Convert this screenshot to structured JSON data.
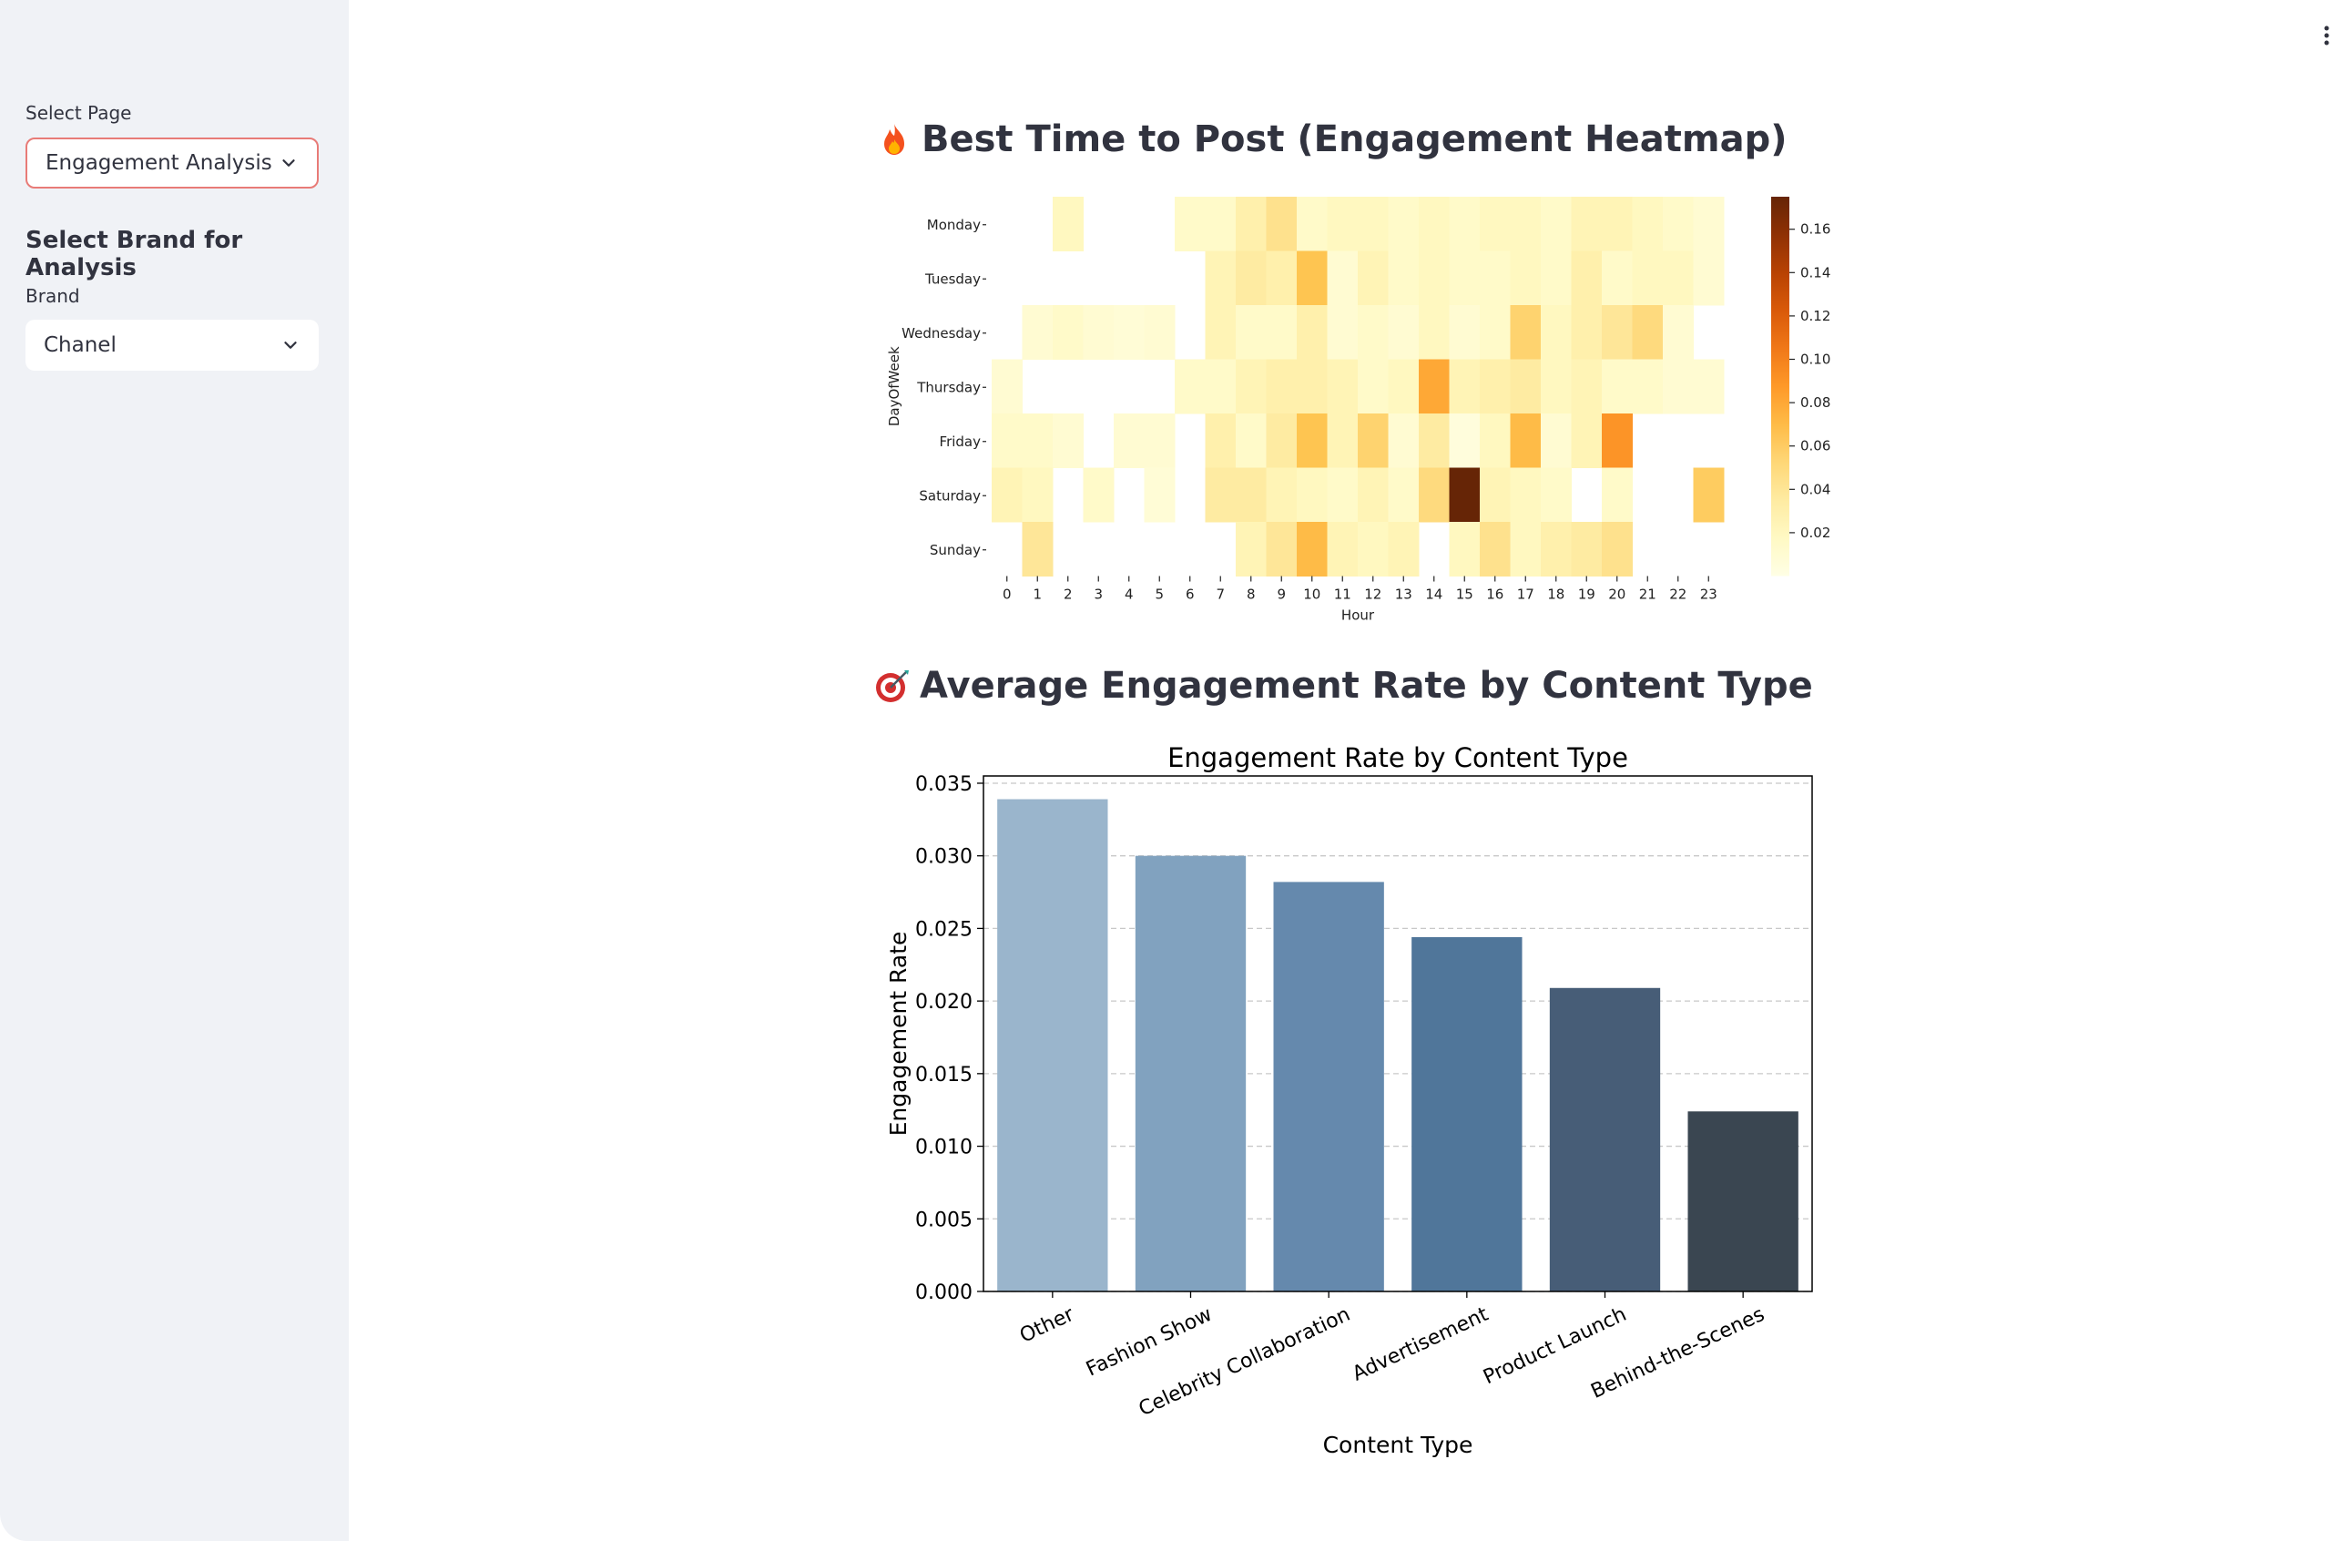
{
  "sidebar": {
    "page_label": "Select Page",
    "page_value": "Engagement Analysis",
    "brand_heading": "Select Brand for Analysis",
    "brand_label": "Brand",
    "brand_value": "Chanel"
  },
  "sections": {
    "heatmap_title": "Best Time to Post (Engagement Heatmap)",
    "bar_title": "Average Engagement Rate by Content Type"
  },
  "chart_data": [
    {
      "type": "heatmap",
      "xlabel": "Hour",
      "ylabel": "DayOfWeek",
      "x": [
        "0",
        "1",
        "2",
        "3",
        "4",
        "5",
        "6",
        "7",
        "8",
        "9",
        "10",
        "11",
        "12",
        "13",
        "14",
        "15",
        "16",
        "17",
        "18",
        "19",
        "20",
        "21",
        "22",
        "23"
      ],
      "y": [
        "Monday",
        "Tuesday",
        "Wednesday",
        "Thursday",
        "Friday",
        "Saturday",
        "Sunday"
      ],
      "colormap": "YlOrBr",
      "colorbar_ticks": [
        0.02,
        0.04,
        0.06,
        0.08,
        0.1,
        0.12,
        0.14,
        0.16
      ],
      "vmax": 0.175,
      "values": [
        [
          null,
          null,
          0.02,
          null,
          null,
          null,
          0.015,
          0.015,
          0.03,
          0.045,
          0.015,
          0.02,
          0.02,
          0.015,
          0.02,
          0.015,
          0.02,
          0.02,
          0.015,
          0.025,
          0.025,
          0.02,
          0.015,
          0.01
        ],
        [
          null,
          null,
          null,
          null,
          null,
          null,
          null,
          0.025,
          0.035,
          0.03,
          0.065,
          0.01,
          0.025,
          0.015,
          0.02,
          0.015,
          0.015,
          0.02,
          0.015,
          0.03,
          0.015,
          0.02,
          0.02,
          0.01
        ],
        [
          null,
          0.01,
          0.015,
          0.01,
          0.008,
          0.01,
          null,
          0.025,
          0.015,
          0.015,
          0.03,
          0.01,
          0.015,
          0.01,
          0.02,
          0.01,
          0.015,
          0.055,
          0.02,
          0.03,
          0.04,
          0.05,
          0.01,
          null
        ],
        [
          0.01,
          null,
          null,
          null,
          null,
          null,
          0.015,
          0.015,
          0.025,
          0.03,
          0.03,
          0.025,
          0.015,
          0.02,
          0.08,
          0.025,
          0.03,
          0.035,
          0.02,
          0.025,
          0.015,
          0.015,
          0.01,
          0.01
        ],
        [
          0.015,
          0.015,
          0.01,
          null,
          0.01,
          0.01,
          null,
          0.03,
          0.015,
          0.035,
          0.065,
          0.025,
          0.055,
          0.01,
          0.035,
          0.005,
          0.02,
          0.07,
          0.01,
          0.025,
          0.09,
          null,
          null,
          null
        ],
        [
          0.025,
          0.02,
          null,
          0.015,
          null,
          0.008,
          null,
          0.035,
          0.035,
          0.025,
          0.02,
          0.015,
          0.025,
          0.015,
          0.05,
          0.175,
          0.025,
          0.02,
          0.015,
          null,
          0.015,
          null,
          null,
          0.06
        ],
        [
          null,
          0.04,
          null,
          null,
          null,
          null,
          null,
          null,
          0.025,
          0.04,
          0.07,
          0.025,
          0.02,
          0.025,
          null,
          0.02,
          0.045,
          0.02,
          0.03,
          0.035,
          0.045,
          null,
          null,
          null
        ]
      ]
    },
    {
      "type": "bar",
      "title": "Engagement Rate by Content Type",
      "xlabel": "Content Type",
      "ylabel": "Engagement Rate",
      "categories": [
        "Other",
        "Fashion Show",
        "Celebrity Collaboration",
        "Advertisement",
        "Product Launch",
        "Behind-the-Scenes"
      ],
      "values": [
        0.0339,
        0.03,
        0.0282,
        0.0244,
        0.0209,
        0.0124
      ],
      "colors": [
        "#9ab5cc",
        "#81a2bf",
        "#6589ad",
        "#50769a",
        "#475d77",
        "#3a4651"
      ],
      "ylim": [
        0,
        0.0355
      ],
      "yticks": [
        "0.000",
        "0.005",
        "0.010",
        "0.015",
        "0.020",
        "0.025",
        "0.030",
        "0.035"
      ],
      "grid": "y dashed"
    }
  ]
}
